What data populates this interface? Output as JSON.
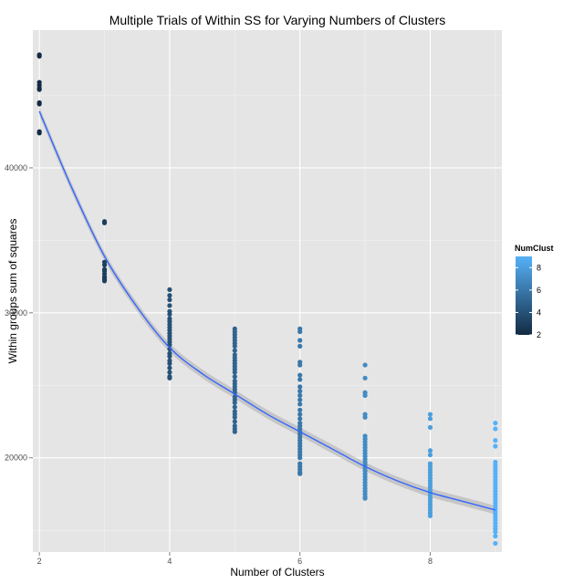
{
  "chart_data": {
    "type": "scatter",
    "title": "Multiple Trials of Within SS for Varying Numbers of Clusters",
    "xlabel": "Number of Clusters",
    "ylabel": "Within groups sum of squares",
    "xlim": [
      1.9,
      9.1
    ],
    "ylim": [
      13500,
      49500
    ],
    "x_ticks": [
      2,
      4,
      6,
      8
    ],
    "x_tick_labels": [
      "2",
      "4",
      "6",
      "8"
    ],
    "y_ticks": [
      20000,
      30000,
      40000
    ],
    "y_tick_labels": [
      "20000",
      "30000",
      "40000"
    ],
    "grid": true,
    "panel_background": "#e5e5e5",
    "grid_color": "#ffffff",
    "smooth_line_color": "#3366ff",
    "smooth_band_color": "#999999",
    "legend": {
      "title": "NumClust",
      "position": "right",
      "min": 2,
      "max": 9,
      "ticks": [
        2,
        4,
        6,
        8
      ],
      "tick_labels": [
        "2",
        "4",
        "6",
        "8"
      ],
      "low_color": "#132b43",
      "high_color": "#56b1f7"
    },
    "series": [
      {
        "x": 2,
        "values": [
          47800,
          47700,
          45900,
          45700,
          45500,
          45400,
          44500,
          44400,
          42500,
          42400
        ]
      },
      {
        "x": 3,
        "values": [
          36300,
          36200,
          33500,
          33300,
          33000,
          32900,
          32700,
          32500,
          32400,
          32300,
          32200
        ]
      },
      {
        "x": 4,
        "values": [
          31600,
          31200,
          30900,
          30500,
          30100,
          29900,
          29600,
          29400,
          29200,
          29000,
          28800,
          28600,
          28400,
          28200,
          28000,
          27800,
          27500,
          27200,
          27000,
          26700,
          26500,
          26200,
          25900,
          25600,
          25500
        ]
      },
      {
        "x": 5,
        "values": [
          28900,
          28700,
          28500,
          28300,
          28100,
          27900,
          27700,
          27400,
          27100,
          26900,
          26700,
          26500,
          26300,
          26100,
          25900,
          25600,
          25300,
          25100,
          24900,
          24700,
          24500,
          24200,
          24000,
          23800,
          23500,
          23200,
          23000,
          22800,
          22500,
          22200,
          22000,
          21800
        ]
      },
      {
        "x": 6,
        "values": [
          28900,
          28700,
          28100,
          27700,
          26600,
          26400,
          25700,
          25400,
          24900,
          24600,
          24300,
          24000,
          23700,
          23300,
          23000,
          22700,
          22400,
          22200,
          22000,
          21800,
          21600,
          21400,
          21200,
          21000,
          20800,
          20600,
          20400,
          20200,
          20000,
          19600,
          19400,
          19200,
          19000,
          18900
        ]
      },
      {
        "x": 7,
        "values": [
          26400,
          25500,
          24500,
          24300,
          23000,
          22800,
          21500,
          21300,
          21100,
          20900,
          20700,
          20500,
          20300,
          20100,
          19900,
          19700,
          19500,
          19300,
          19100,
          18900,
          18700,
          18500,
          18300,
          18100,
          17900,
          17700,
          17500,
          17300,
          17200
        ]
      },
      {
        "x": 8,
        "values": [
          23000,
          22700,
          22100,
          20500,
          20200,
          19600,
          19400,
          19200,
          19000,
          18800,
          18600,
          18400,
          18200,
          18000,
          17800,
          17600,
          17400,
          17200,
          17000,
          16800,
          16600,
          16400,
          16200,
          16000
        ]
      },
      {
        "x": 9,
        "values": [
          22400,
          22000,
          21200,
          20800,
          19700,
          19500,
          19300,
          19100,
          18900,
          18700,
          18500,
          18300,
          18100,
          17900,
          17700,
          17500,
          17300,
          17100,
          16900,
          16700,
          16500,
          16300,
          16100,
          15900,
          15700,
          15500,
          15300,
          15100,
          14900,
          14600,
          14100
        ]
      }
    ],
    "smooth": {
      "x": [
        2,
        2.5,
        3,
        3.5,
        4,
        4.5,
        5,
        5.5,
        6,
        6.5,
        7,
        7.5,
        8,
        8.5,
        9
      ],
      "y": [
        43900,
        38600,
        33900,
        30400,
        27600,
        25800,
        24400,
        23000,
        21800,
        20600,
        19400,
        18400,
        17600,
        17000,
        16400
      ],
      "band": 300
    }
  }
}
